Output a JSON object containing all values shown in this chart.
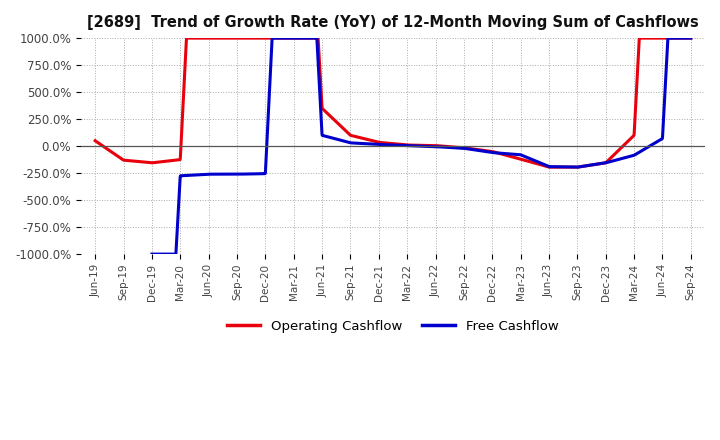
{
  "title": "[2689]  Trend of Growth Rate (YoY) of 12-Month Moving Sum of Cashflows",
  "ylim": [
    -1000,
    1000
  ],
  "yticks": [
    -1000,
    -750,
    -500,
    -250,
    0,
    250,
    500,
    750,
    1000
  ],
  "ytick_labels": [
    "-1000.0%",
    "-750.0%",
    "-500.0%",
    "-250.0%",
    "0.0%",
    "250.0%",
    "500.0%",
    "750.0%",
    "1000.0%"
  ],
  "legend_entries": [
    "Operating Cashflow",
    "Free Cashflow"
  ],
  "line_colors": [
    "#e8000d",
    "#0000cc"
  ],
  "background_color": "#ffffff",
  "grid_color": "#aaaaaa",
  "x_labels": [
    "Jun-19",
    "Sep-19",
    "Dec-19",
    "Mar-20",
    "Jun-20",
    "Sep-20",
    "Dec-20",
    "Mar-21",
    "Jun-21",
    "Sep-21",
    "Dec-21",
    "Mar-22",
    "Jun-22",
    "Sep-22",
    "Dec-22",
    "Mar-23",
    "Jun-23",
    "Sep-23",
    "Dec-23",
    "Mar-24",
    "Jun-24",
    "Sep-24"
  ],
  "operating_cf_x": [
    0,
    1,
    2,
    3,
    4,
    5,
    6,
    7,
    8,
    9,
    10,
    11,
    12,
    13,
    14,
    15,
    16,
    17,
    18,
    19,
    20,
    21
  ],
  "operating_cf_y": [
    50,
    -130,
    -155,
    -125,
    5000,
    5000,
    5000,
    5000,
    350,
    100,
    35,
    10,
    5,
    -15,
    -50,
    -120,
    -195,
    -195,
    -155,
    100,
    5000,
    5000
  ],
  "free_cf_x": [
    2,
    3,
    4,
    5,
    6,
    7,
    8,
    9,
    10,
    11,
    12,
    13,
    14,
    15,
    16,
    17,
    18,
    19,
    20,
    21
  ],
  "free_cf_y": [
    -5000,
    -275,
    -260,
    -260,
    -255,
    5000,
    100,
    30,
    15,
    5,
    -5,
    -20,
    -60,
    -80,
    -190,
    -195,
    -155,
    -85,
    70,
    5000
  ]
}
